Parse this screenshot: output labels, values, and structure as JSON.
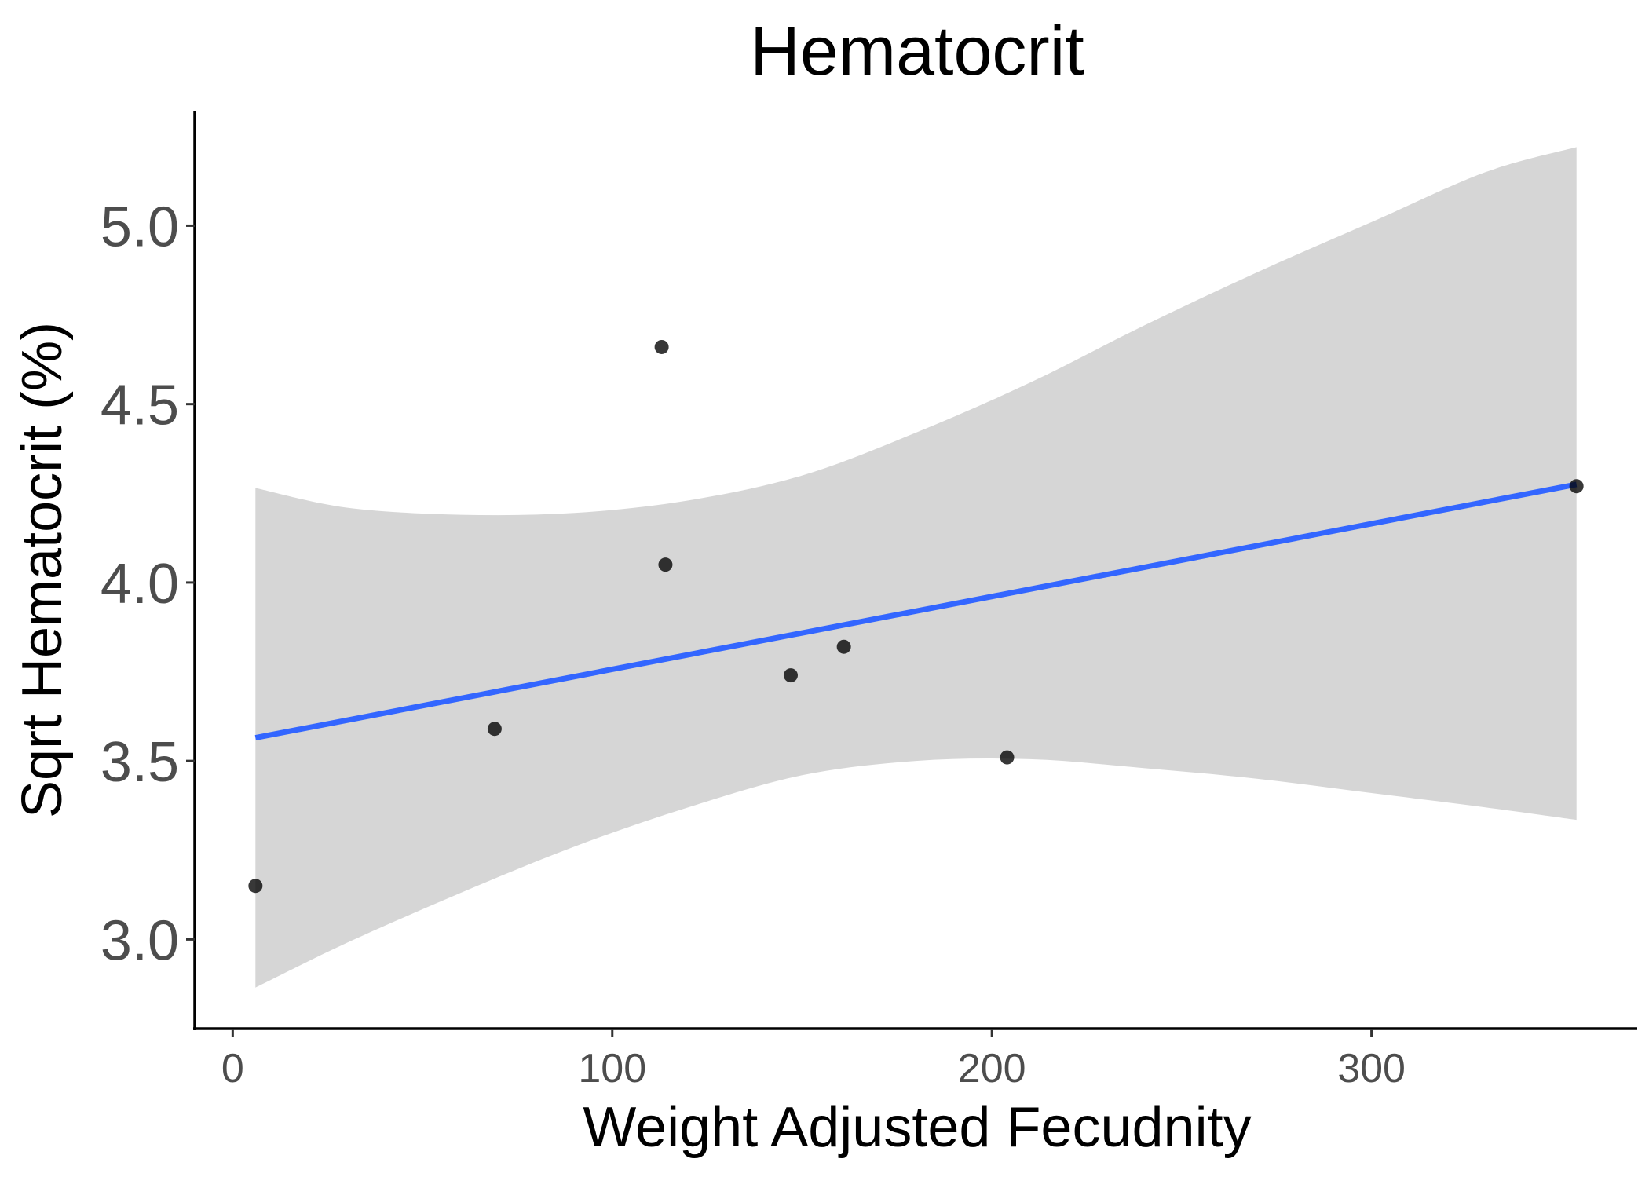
{
  "chart_data": {
    "type": "scatter",
    "title": "Hematocrit",
    "xlabel": "Weight Adjusted Fecudnity",
    "ylabel": "Sqrt Hematocrit (%)",
    "xlim": [
      -10,
      370
    ],
    "ylim": [
      2.75,
      5.32
    ],
    "x_ticks": [
      0,
      100,
      200,
      300
    ],
    "y_ticks": [
      3.0,
      3.5,
      4.0,
      4.5,
      5.0
    ],
    "x_tick_labels": [
      "0",
      "100",
      "200",
      "300"
    ],
    "y_tick_labels": [
      "3.0",
      "3.5",
      "4.0",
      "4.5",
      "5.0"
    ],
    "grid": false,
    "series": [
      {
        "points": [
          {
            "x": 6,
            "y": 3.15
          },
          {
            "x": 69,
            "y": 3.59
          },
          {
            "x": 113,
            "y": 4.66
          },
          {
            "x": 114,
            "y": 4.05
          },
          {
            "x": 147,
            "y": 3.74
          },
          {
            "x": 161,
            "y": 3.82
          },
          {
            "x": 204,
            "y": 3.51
          },
          {
            "x": 354,
            "y": 4.27
          }
        ]
      }
    ],
    "fit_line": {
      "x": [
        6,
        354
      ],
      "y": [
        3.565,
        4.275
      ]
    },
    "confidence_band": {
      "x": [
        6,
        30,
        60,
        90,
        120,
        150,
        180,
        210,
        240,
        270,
        300,
        330,
        354
      ],
      "lower": [
        2.865,
        2.99,
        3.13,
        3.26,
        3.37,
        3.46,
        3.5,
        3.505,
        3.48,
        3.45,
        3.41,
        3.37,
        3.335
      ],
      "upper": [
        4.265,
        4.21,
        4.19,
        4.195,
        4.23,
        4.3,
        4.42,
        4.56,
        4.72,
        4.87,
        5.01,
        5.15,
        5.22
      ]
    },
    "colors": {
      "points": "#000000",
      "fit_line": "#3366ff",
      "band": "#d6d6d6"
    }
  }
}
